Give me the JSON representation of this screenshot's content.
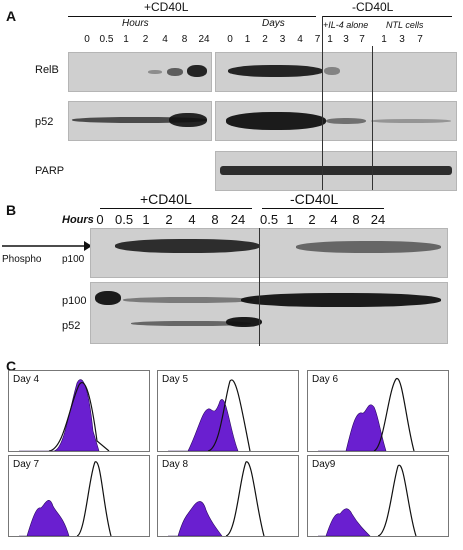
{
  "panel_a": {
    "letter": "A",
    "plus_cd40l": "+CD40L",
    "minus_cd40l": "-CD40L",
    "hours_label": "Hours",
    "days_label": "Days",
    "il4_label": "+IL-4 alone",
    "ntl_label": "NTL cells",
    "hour_lanes": [
      "0",
      "0.5",
      "1",
      "2",
      "4",
      "8",
      "24"
    ],
    "day_lanes": [
      "0",
      "1",
      "2",
      "3",
      "4",
      "7"
    ],
    "il4_lanes": [
      "1",
      "3",
      "7"
    ],
    "ntl_lanes": [
      "1",
      "3",
      "7"
    ],
    "rows": [
      "RelB",
      "p52",
      "PARP"
    ]
  },
  "panel_b": {
    "letter": "B",
    "plus_cd40l": "+CD40L",
    "minus_cd40l": "-CD40L",
    "hours_label": "Hours",
    "plus_lanes": [
      "0",
      "0.5",
      "1",
      "2",
      "4",
      "8",
      "24"
    ],
    "minus_lanes": [
      "0.5",
      "1",
      "2",
      "4",
      "8",
      "24"
    ],
    "phospho_label": "Phospho",
    "p100_top": "p100",
    "p100": "p100",
    "p52": "p52"
  },
  "panel_c": {
    "letter": "C",
    "plots": [
      {
        "day": "Day 4"
      },
      {
        "day": "Day 5"
      },
      {
        "day": "Day 6"
      },
      {
        "day": "Day 7"
      },
      {
        "day": "Day 8"
      },
      {
        "day": "Day9"
      }
    ]
  },
  "colors": {
    "histogram_fill": "#6a1fd0",
    "outline": "#111111"
  }
}
